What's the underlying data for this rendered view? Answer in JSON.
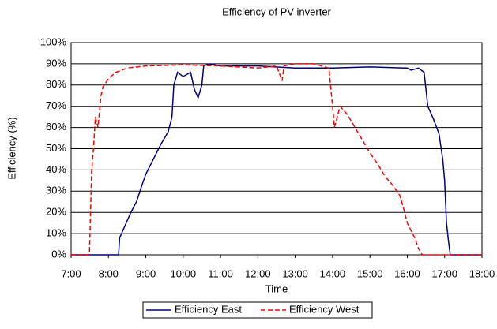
{
  "chart_data": {
    "type": "line",
    "title": "Efficiency of PV inverter",
    "xlabel": "Time",
    "ylabel": "Efficiency (%)",
    "xlim": [
      7,
      18
    ],
    "xticks": [
      {
        "value": 7,
        "label": "7:00"
      },
      {
        "value": 8,
        "label": "8:00"
      },
      {
        "value": 9,
        "label": "9:00"
      },
      {
        "value": 10,
        "label": "10:00"
      },
      {
        "value": 11,
        "label": "11:00"
      },
      {
        "value": 12,
        "label": "12:00"
      },
      {
        "value": 13,
        "label": "13:00"
      },
      {
        "value": 14,
        "label": "14:00"
      },
      {
        "value": 15,
        "label": "15:00"
      },
      {
        "value": 16,
        "label": "16:00"
      },
      {
        "value": 17,
        "label": "17:00"
      },
      {
        "value": 18,
        "label": "18:00"
      }
    ],
    "ylim": [
      0,
      100
    ],
    "yticks": [
      {
        "value": 0,
        "label": "0%"
      },
      {
        "value": 10,
        "label": "10%"
      },
      {
        "value": 20,
        "label": "20%"
      },
      {
        "value": 30,
        "label": "30%"
      },
      {
        "value": 40,
        "label": "40%"
      },
      {
        "value": 50,
        "label": "50%"
      },
      {
        "value": 60,
        "label": "60%"
      },
      {
        "value": 70,
        "label": "70%"
      },
      {
        "value": 80,
        "label": "80%"
      },
      {
        "value": 90,
        "label": "90%"
      },
      {
        "value": 100,
        "label": "100%"
      }
    ],
    "grid": true,
    "legend": "bottom",
    "series": [
      {
        "name": "Efficiency East",
        "color": "#000080",
        "dash": false,
        "x": [
          7,
          8.27,
          8.3,
          8.45,
          8.6,
          8.75,
          8.9,
          9.0,
          9.2,
          9.4,
          9.6,
          9.7,
          9.75,
          9.85,
          10.0,
          10.2,
          10.3,
          10.4,
          10.5,
          10.55,
          10.7,
          11,
          12,
          13,
          14,
          15,
          16,
          16.1,
          16.3,
          16.45,
          16.55,
          16.7,
          16.85,
          16.95,
          17.0,
          17.05,
          17.1,
          17.15,
          18
        ],
        "values": [
          0,
          0,
          8,
          14,
          20,
          25,
          33,
          38,
          45,
          52,
          58,
          65,
          80,
          86,
          84,
          86,
          78,
          74,
          80,
          89,
          90,
          89,
          89,
          88,
          88,
          88.5,
          88,
          87,
          88,
          86,
          70,
          64,
          57,
          45,
          35,
          15,
          7,
          0,
          0
        ]
      },
      {
        "name": "Efficiency West",
        "color": "#ff0000",
        "dash": true,
        "x": [
          7,
          7.49,
          7.55,
          7.6,
          7.65,
          7.72,
          7.8,
          7.85,
          8.0,
          8.2,
          8.5,
          9,
          10,
          11,
          12,
          12.5,
          12.65,
          12.7,
          13,
          13.5,
          13.9,
          14.0,
          14.05,
          14.2,
          14.4,
          14.6,
          14.8,
          15.0,
          15.2,
          15.4,
          15.6,
          15.8,
          15.9,
          16.0,
          16.2,
          16.3,
          16.4,
          18
        ],
        "values": [
          0,
          0,
          40,
          50,
          65,
          60,
          75,
          79,
          83,
          86,
          88,
          89,
          89.5,
          89,
          88,
          89,
          82,
          89,
          90,
          90,
          88,
          70,
          60,
          70,
          66,
          60,
          54,
          48,
          43,
          37,
          33,
          28,
          22,
          15,
          8,
          3,
          0,
          0
        ]
      }
    ]
  }
}
